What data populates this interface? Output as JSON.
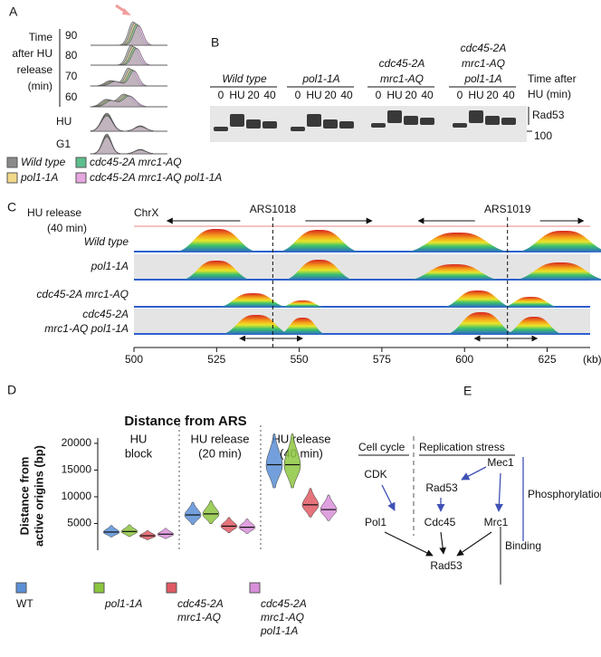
{
  "figure": {
    "a": {
      "label": "A",
      "time_label": [
        "Time",
        "after HU",
        "release",
        "(min)"
      ],
      "rows": [
        "90",
        "80",
        "70",
        "60",
        "HU",
        "G1"
      ],
      "legend": [
        {
          "name": "Wild type",
          "color": "#8a8a8a"
        },
        {
          "name": "pol1-1A",
          "color": "#f2d98a"
        },
        {
          "name": "cdc45-2A mrc1-AQ",
          "color": "#5cbf8c"
        },
        {
          "name": "cdc45-2A mrc1-AQ pol1-1A",
          "color": "#e6a6e0"
        }
      ]
    },
    "b": {
      "label": "B",
      "strains": [
        [
          "Wild type"
        ],
        [
          "pol1-1A"
        ],
        [
          "cdc45-2A",
          "mrc1-AQ"
        ],
        [
          "cdc45-2A",
          "mrc1-AQ",
          "pol1-1A"
        ]
      ],
      "lanes": [
        "0",
        "HU",
        "20",
        "40"
      ],
      "time_label": [
        "Time after",
        "HU (min)"
      ],
      "band_label": "Rad53",
      "marker": "100"
    },
    "c": {
      "label": "C",
      "condition": [
        "HU release",
        "(40 min)"
      ],
      "chromosome": "ChrX",
      "origins": [
        "ARS1018",
        "ARS1019"
      ],
      "tracks": [
        [
          "Wild type"
        ],
        [
          "pol1-1A"
        ],
        [
          "cdc45-2A mrc1-AQ"
        ],
        [
          "cdc45-2A",
          "mrc1-AQ pol1-1A"
        ]
      ],
      "xlim": [
        500,
        638
      ],
      "xticks": [
        500,
        525,
        550,
        575,
        600,
        625
      ],
      "x_unit": "(kb)"
    },
    "e": {
      "label": "E",
      "columns": [
        "Cell cycle",
        "Replication stress"
      ],
      "nodes": [
        "CDK",
        "Pol1",
        "Mec1",
        "Rad53",
        "Cdc45",
        "Mrc1",
        "Rad53"
      ],
      "brackets": [
        "Phosphorylation",
        "Binding"
      ]
    }
  },
  "chart_data": {
    "type": "violin",
    "panel_label": "D",
    "title": "Distance from ARS",
    "y_label": [
      "Distance from",
      "active origins (bp)"
    ],
    "categories": [
      [
        "HU",
        "block"
      ],
      [
        "HU release",
        "(20 min)"
      ],
      [
        "HU release",
        "(40 min)"
      ]
    ],
    "series": [
      {
        "name": [
          "WT"
        ],
        "color": "#5b8fd6",
        "values": [
          3400,
          6600,
          16000
        ]
      },
      {
        "name": [
          "pol1-1A"
        ],
        "color": "#8dc63f",
        "values": [
          3500,
          6800,
          16000
        ]
      },
      {
        "name": [
          "cdc45-2A",
          "mrc1-AQ"
        ],
        "color": "#e05a64",
        "values": [
          2700,
          4500,
          8500
        ]
      },
      {
        "name": [
          "cdc45-2A",
          "mrc1-AQ",
          "pol1-1A"
        ],
        "color": "#d98fd9",
        "values": [
          3000,
          4300,
          7600
        ]
      }
    ],
    "ylim": [
      0,
      21000
    ],
    "yticks": [
      5000,
      10000,
      15000,
      20000
    ]
  }
}
